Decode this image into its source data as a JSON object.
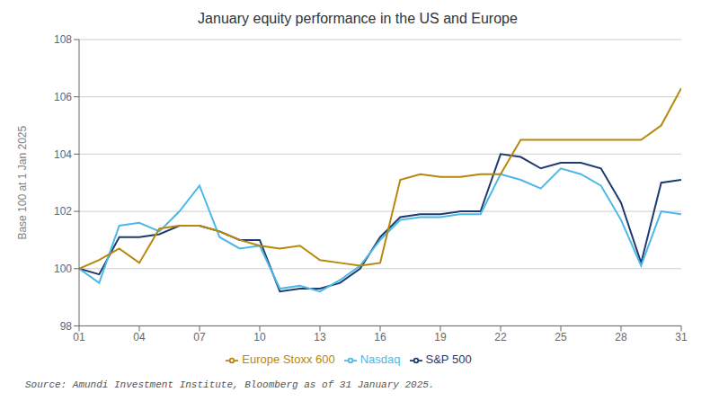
{
  "chart_data": {
    "type": "line",
    "title": "January equity performance in the US and Europe",
    "y_label": "Base 100 at 1 Jan 2025",
    "source": "Source: Amundi Investment Institute, Bloomberg as of 31 January 2025.",
    "x": [
      1,
      2,
      3,
      4,
      5,
      6,
      7,
      8,
      9,
      10,
      11,
      12,
      13,
      14,
      15,
      16,
      17,
      18,
      19,
      20,
      21,
      22,
      23,
      24,
      25,
      26,
      27,
      28,
      29,
      30,
      31
    ],
    "xlim": [
      1,
      31
    ],
    "xticks": [
      {
        "value": 1,
        "label": "01"
      },
      {
        "value": 4,
        "label": "04"
      },
      {
        "value": 7,
        "label": "07"
      },
      {
        "value": 10,
        "label": "10"
      },
      {
        "value": 13,
        "label": "13"
      },
      {
        "value": 16,
        "label": "16"
      },
      {
        "value": 19,
        "label": "19"
      },
      {
        "value": 22,
        "label": "22"
      },
      {
        "value": 25,
        "label": "25"
      },
      {
        "value": 28,
        "label": "28"
      },
      {
        "value": 31,
        "label": "31"
      }
    ],
    "ylim": [
      98,
      108
    ],
    "yticks": [
      98,
      100,
      102,
      104,
      106,
      108
    ],
    "grid": true,
    "legend": "bottom",
    "series": [
      {
        "name": "S&P 500",
        "color": "#1F3B6E",
        "values": [
          100.0,
          99.8,
          101.1,
          101.1,
          101.2,
          101.5,
          101.5,
          101.3,
          101.0,
          101.0,
          99.2,
          99.3,
          99.3,
          99.5,
          100.0,
          101.1,
          101.8,
          101.9,
          101.9,
          102.0,
          102.0,
          104.0,
          103.9,
          103.5,
          103.7,
          103.7,
          103.5,
          102.3,
          100.2,
          103.0,
          103.1
        ]
      },
      {
        "name": "Nasdaq",
        "color": "#4CB8E8",
        "values": [
          100.0,
          99.5,
          101.5,
          101.6,
          101.3,
          102.0,
          102.9,
          101.1,
          100.7,
          100.8,
          99.3,
          99.4,
          99.2,
          99.6,
          100.1,
          101.0,
          101.7,
          101.8,
          101.8,
          101.9,
          101.9,
          103.3,
          103.1,
          102.8,
          103.5,
          103.3,
          102.9,
          101.7,
          100.1,
          102.0,
          101.9
        ]
      },
      {
        "name": "Europe Stoxx 600",
        "color": "#B8870B",
        "values": [
          100.0,
          100.3,
          100.7,
          100.2,
          101.4,
          101.5,
          101.5,
          101.3,
          101.0,
          100.8,
          100.7,
          100.8,
          100.3,
          100.2,
          100.1,
          100.2,
          103.1,
          103.3,
          103.2,
          103.2,
          103.3,
          103.3,
          104.5,
          104.5,
          104.5,
          104.5,
          104.5,
          104.5,
          104.5,
          105.0,
          106.3
        ]
      }
    ]
  }
}
